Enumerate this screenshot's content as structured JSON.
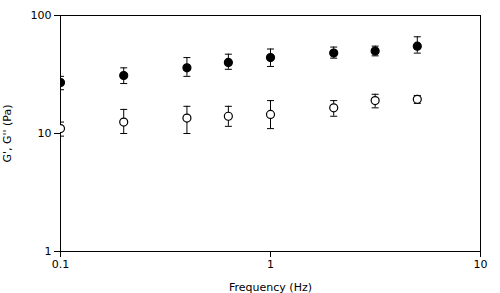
{
  "chart_data": {
    "type": "scatter",
    "xlabel": "Frequency (Hz)",
    "ylabel": "G', G'' (Pa)",
    "x": [
      0.1,
      0.2,
      0.4,
      0.63,
      1.0,
      2.0,
      3.15,
      5.0
    ],
    "series": [
      {
        "color": "#000000",
        "marker": "filled",
        "values": [
          27.0,
          31.0,
          36.0,
          40.0,
          44.0,
          48.0,
          50.0,
          55.0
        ],
        "yerr_lo": [
          3.5,
          4.5,
          5.5,
          5.0,
          7.0,
          4.5,
          4.5,
          7.0
        ],
        "yerr_hi": [
          3.5,
          5.0,
          8.0,
          7.0,
          8.0,
          6.0,
          5.0,
          11.0
        ]
      },
      {
        "color": "#000000",
        "marker": "open",
        "values": [
          11.0,
          12.5,
          13.5,
          14.0,
          14.5,
          16.5,
          19.0,
          19.5
        ],
        "yerr_lo": [
          1.5,
          2.5,
          3.5,
          2.5,
          3.5,
          2.5,
          2.5,
          1.5
        ],
        "yerr_hi": [
          1.5,
          3.5,
          3.5,
          3.0,
          4.5,
          2.5,
          2.5,
          1.5
        ]
      }
    ],
    "log": true,
    "xlim": [
      0.1,
      10
    ],
    "ylim": [
      1,
      100
    ],
    "xticks": [
      0.1,
      1,
      10
    ],
    "yticks": [
      1,
      10,
      100
    ],
    "grid": false
  }
}
